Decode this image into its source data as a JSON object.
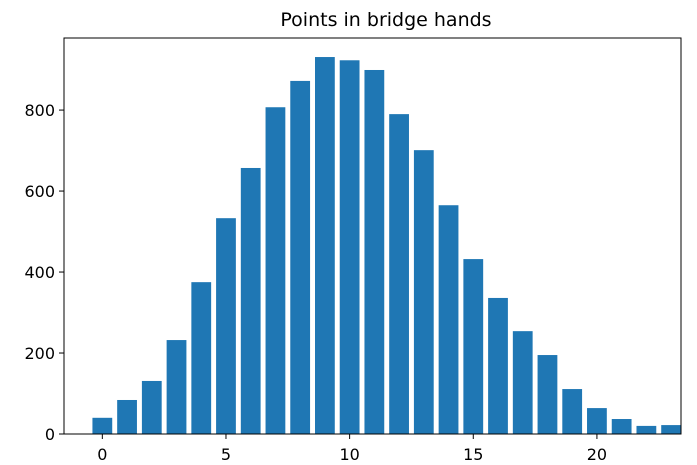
{
  "chart_data": {
    "type": "bar",
    "title": "Points in bridge hands",
    "x": [
      0,
      1,
      2,
      3,
      4,
      5,
      6,
      7,
      8,
      9,
      10,
      11,
      12,
      13,
      14,
      15,
      16,
      17,
      18,
      19,
      20,
      21,
      22,
      23
    ],
    "values": [
      40,
      84,
      131,
      232,
      375,
      533,
      657,
      807,
      872,
      931,
      923,
      899,
      790,
      701,
      565,
      432,
      336,
      254,
      195,
      111,
      64,
      37,
      20,
      22
    ],
    "color": "#1f77b4",
    "xlim": [
      -1.55,
      23.4
    ],
    "xticks": [
      0,
      5,
      10,
      15,
      20
    ],
    "ylim": [
      0,
      978
    ],
    "yticks": [
      0,
      200,
      400,
      600,
      800
    ],
    "grid": false
  }
}
